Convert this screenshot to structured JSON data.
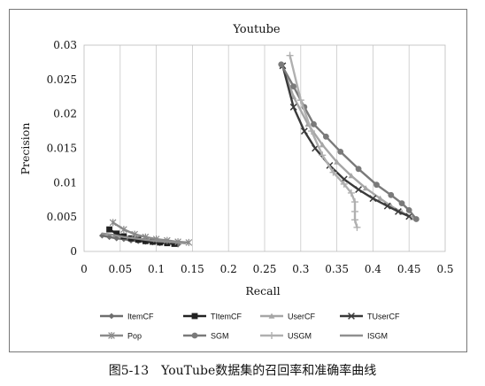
{
  "chart_data": {
    "type": "line",
    "title": "Youtube",
    "xlabel": "Recall",
    "ylabel": "Precision",
    "xlim": [
      0,
      0.5
    ],
    "ylim": [
      0,
      0.03
    ],
    "x_ticks": [
      "0",
      "0.05",
      "0.1",
      "0.15",
      "0.2",
      "0.25",
      "0.3",
      "0.35",
      "0.4",
      "0.45",
      "0.5"
    ],
    "y_ticks": [
      "0",
      "0.005",
      "0.01",
      "0.015",
      "0.02",
      "0.025",
      "0.03"
    ],
    "grid": "vertical",
    "legend_position": "bottom",
    "series": [
      {
        "name": "ItemCF",
        "color": "#6e6e6e",
        "marker": "diamond",
        "x": [
          0.025,
          0.035,
          0.045,
          0.055,
          0.065,
          0.075,
          0.085,
          0.095,
          0.105,
          0.115,
          0.125,
          0.13
        ],
        "y": [
          0.0023,
          0.0021,
          0.0019,
          0.0018,
          0.0016,
          0.0015,
          0.0014,
          0.0013,
          0.0012,
          0.0012,
          0.0011,
          0.001
        ]
      },
      {
        "name": "TItemCF",
        "color": "#222222",
        "marker": "square",
        "x": [
          0.035,
          0.045,
          0.055,
          0.065,
          0.075,
          0.085,
          0.095,
          0.105,
          0.115,
          0.125
        ],
        "y": [
          0.0032,
          0.0026,
          0.0022,
          0.0019,
          0.0017,
          0.0015,
          0.0014,
          0.0013,
          0.0012,
          0.0011
        ]
      },
      {
        "name": "UserCF",
        "color": "#a6a6a6",
        "marker": "triangle",
        "x": [
          0.275,
          0.29,
          0.31,
          0.33,
          0.35,
          0.37,
          0.39,
          0.41,
          0.425,
          0.44,
          0.455
        ],
        "y": [
          0.027,
          0.0225,
          0.0185,
          0.0155,
          0.013,
          0.011,
          0.0092,
          0.0077,
          0.0066,
          0.0057,
          0.0049
        ]
      },
      {
        "name": "TUserCF",
        "color": "#3a3a3a",
        "marker": "x",
        "x": [
          0.275,
          0.29,
          0.305,
          0.32,
          0.34,
          0.36,
          0.38,
          0.4,
          0.42,
          0.435,
          0.45
        ],
        "y": [
          0.027,
          0.021,
          0.0175,
          0.015,
          0.0125,
          0.0105,
          0.009,
          0.0077,
          0.0066,
          0.0058,
          0.0051
        ]
      },
      {
        "name": "Pop",
        "color": "#8a8a8a",
        "marker": "asterisk",
        "x": [
          0.04,
          0.055,
          0.07,
          0.085,
          0.1,
          0.115,
          0.13,
          0.145
        ],
        "y": [
          0.0042,
          0.0032,
          0.0025,
          0.0021,
          0.0018,
          0.0016,
          0.0014,
          0.0013
        ]
      },
      {
        "name": "SGM",
        "color": "#7a7a7a",
        "marker": "circle",
        "x": [
          0.273,
          0.29,
          0.305,
          0.318,
          0.335,
          0.355,
          0.38,
          0.405,
          0.425,
          0.44,
          0.45,
          0.46
        ],
        "y": [
          0.0272,
          0.024,
          0.021,
          0.0185,
          0.0167,
          0.0145,
          0.012,
          0.0097,
          0.0082,
          0.007,
          0.006,
          0.0047
        ]
      },
      {
        "name": "USGM",
        "color": "#b0b0b0",
        "marker": "plus",
        "x": [
          0.285,
          0.3,
          0.315,
          0.33,
          0.345,
          0.36,
          0.37,
          0.375,
          0.375,
          0.375,
          0.378
        ],
        "y": [
          0.0285,
          0.022,
          0.0175,
          0.014,
          0.0115,
          0.0098,
          0.0085,
          0.0072,
          0.0058,
          0.0046,
          0.0035
        ]
      },
      {
        "name": "ISGM",
        "color": "#909090",
        "marker": "none",
        "x": [
          0.025,
          0.04,
          0.055,
          0.07,
          0.085,
          0.1,
          0.115,
          0.13,
          0.14
        ],
        "y": [
          0.0026,
          0.0024,
          0.0021,
          0.0019,
          0.0017,
          0.0015,
          0.0014,
          0.0013,
          0.0012
        ]
      }
    ]
  },
  "caption": "图5-13　YouTube数据集的召回率和准确率曲线"
}
